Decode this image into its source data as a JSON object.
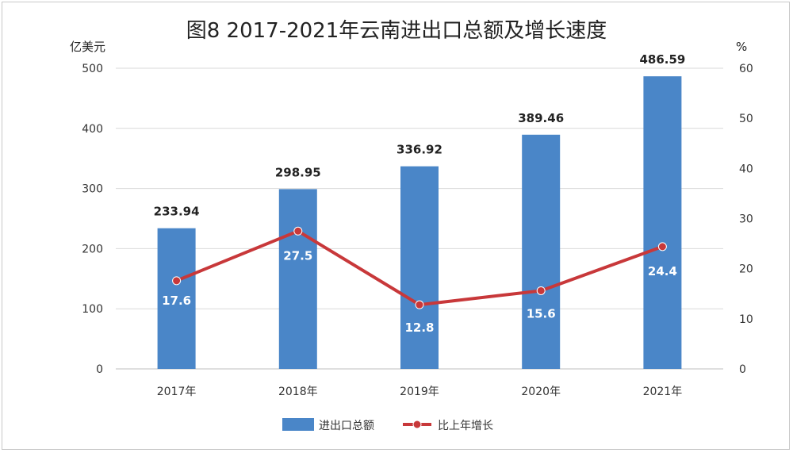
{
  "chart_data": {
    "type": "bar",
    "title": "图8  2017-2021年云南进出口总额及增长速度",
    "y_left_label": "亿美元",
    "y_right_label": "%",
    "categories": [
      "2017年",
      "2018年",
      "2019年",
      "2020年",
      "2021年"
    ],
    "y_left_ticks": [
      "0",
      "100",
      "200",
      "300",
      "400",
      "500"
    ],
    "y_right_ticks": [
      "0",
      "10",
      "20",
      "30",
      "40",
      "50",
      "60"
    ],
    "ylim_left": [
      0,
      500
    ],
    "ylim_right": [
      0,
      60
    ],
    "series": [
      {
        "name": "进出口总额",
        "type": "bar",
        "axis": "left",
        "color": "#4a86c8",
        "values": [
          233.94,
          298.95,
          336.92,
          389.46,
          486.59
        ],
        "labels": [
          "233.94",
          "298.95",
          "336.92",
          "389.46",
          "486.59"
        ]
      },
      {
        "name": "比上年增长",
        "type": "line",
        "axis": "right",
        "color": "#c8383a",
        "values": [
          17.6,
          27.5,
          12.8,
          15.6,
          24.4
        ],
        "labels": [
          "17.6",
          "27.5",
          "12.8",
          "15.6",
          "24.4"
        ]
      }
    ],
    "grid": true,
    "legend_position": "bottom"
  }
}
